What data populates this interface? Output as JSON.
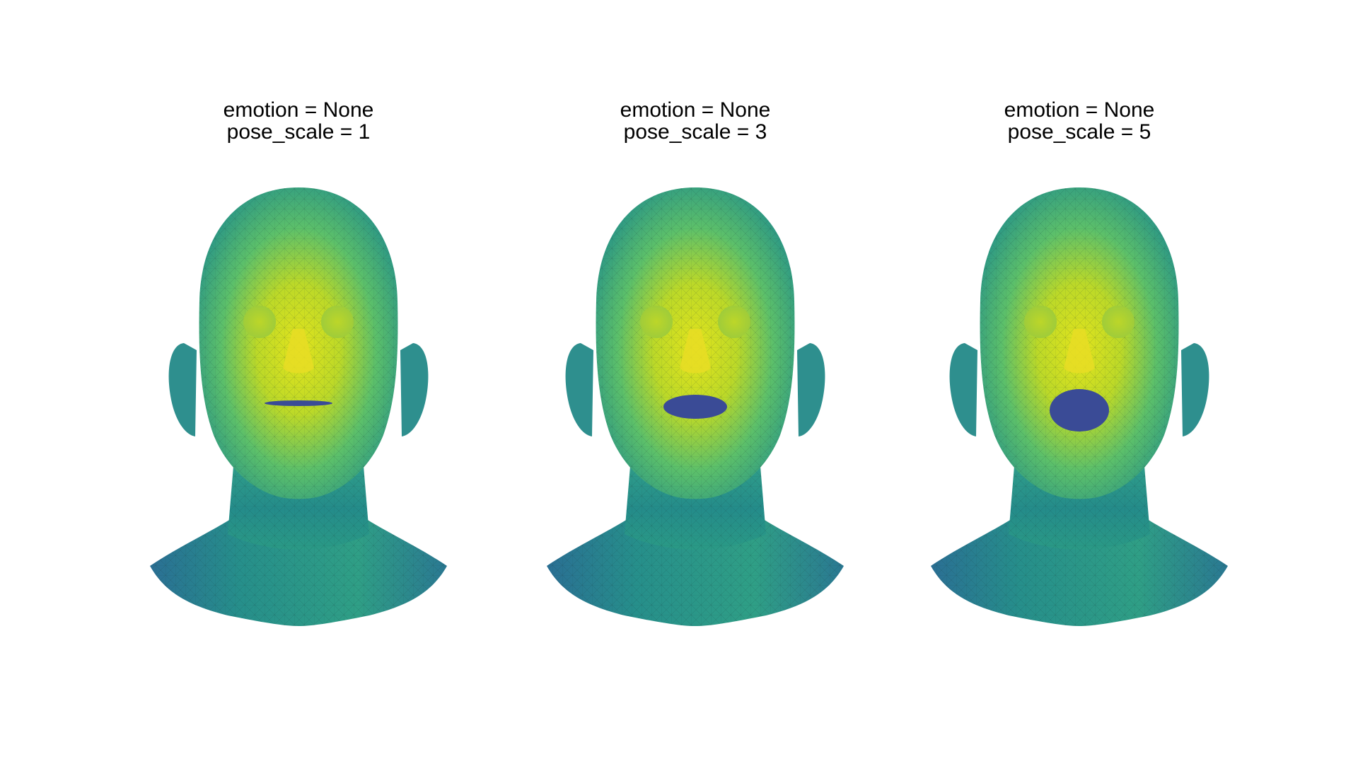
{
  "panels": [
    {
      "emotion_label": "emotion = None",
      "pose_label": "pose_scale = 1",
      "pose_scale": 1
    },
    {
      "emotion_label": "emotion = None",
      "pose_label": "pose_scale = 3",
      "pose_scale": 3
    },
    {
      "emotion_label": "emotion = None",
      "pose_label": "pose_scale = 5",
      "pose_scale": 5
    }
  ],
  "colors": {
    "background": "#ffffff",
    "skin_low": "#2a8a8a",
    "skin_mid": "#3fb27a",
    "skin_high": "#d4e120",
    "mouth": "#3a4b96",
    "mesh_line": "#1e3a3a"
  }
}
